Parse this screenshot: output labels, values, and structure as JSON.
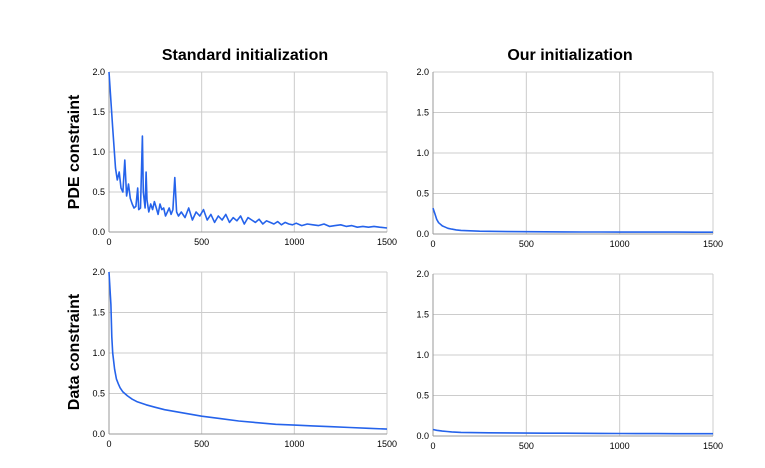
{
  "figure": {
    "col_titles": [
      "Standard initialization",
      "Our initialization"
    ],
    "row_titles": [
      "PDE constraint",
      "Data constraint"
    ]
  },
  "chart_data": [
    {
      "type": "line",
      "row": "PDE constraint",
      "column": "Standard initialization",
      "xlim": [
        0,
        1500
      ],
      "ylim": [
        0,
        2.0
      ],
      "xticks": [
        "0",
        "500",
        "1000",
        "1500"
      ],
      "yticks": [
        "0.0",
        "0.5",
        "1.0",
        "1.5",
        "2.0"
      ],
      "grid": true,
      "color": "#2563eb",
      "x": [
        0,
        20,
        35,
        45,
        55,
        65,
        75,
        85,
        95,
        105,
        115,
        125,
        135,
        145,
        155,
        160,
        170,
        180,
        185,
        195,
        200,
        205,
        215,
        225,
        235,
        245,
        255,
        265,
        275,
        285,
        295,
        305,
        315,
        325,
        335,
        345,
        355,
        365,
        375,
        390,
        410,
        430,
        450,
        470,
        490,
        510,
        530,
        550,
        570,
        590,
        610,
        630,
        650,
        670,
        690,
        710,
        730,
        750,
        770,
        790,
        810,
        830,
        850,
        870,
        890,
        910,
        930,
        950,
        970,
        990,
        1010,
        1040,
        1070,
        1100,
        1130,
        1160,
        1190,
        1220,
        1250,
        1280,
        1310,
        1340,
        1370,
        1400,
        1430,
        1460,
        1500
      ],
      "y": [
        2.0,
        1.3,
        0.8,
        0.65,
        0.75,
        0.55,
        0.5,
        0.9,
        0.45,
        0.6,
        0.42,
        0.35,
        0.3,
        0.32,
        0.55,
        0.28,
        0.3,
        1.2,
        0.5,
        0.3,
        0.75,
        0.4,
        0.25,
        0.35,
        0.28,
        0.38,
        0.3,
        0.22,
        0.35,
        0.28,
        0.3,
        0.2,
        0.25,
        0.3,
        0.22,
        0.28,
        0.68,
        0.25,
        0.2,
        0.25,
        0.18,
        0.3,
        0.15,
        0.25,
        0.2,
        0.28,
        0.15,
        0.22,
        0.12,
        0.2,
        0.15,
        0.22,
        0.12,
        0.18,
        0.14,
        0.2,
        0.1,
        0.18,
        0.15,
        0.12,
        0.16,
        0.1,
        0.14,
        0.12,
        0.1,
        0.13,
        0.09,
        0.12,
        0.1,
        0.09,
        0.11,
        0.08,
        0.1,
        0.09,
        0.08,
        0.1,
        0.07,
        0.08,
        0.09,
        0.07,
        0.08,
        0.06,
        0.07,
        0.06,
        0.07,
        0.06,
        0.05
      ]
    },
    {
      "type": "line",
      "row": "PDE constraint",
      "column": "Our initialization",
      "xlim": [
        0,
        1500
      ],
      "ylim": [
        0,
        2.0
      ],
      "xticks": [
        "0",
        "500",
        "1000",
        "1500"
      ],
      "yticks": [
        "0.0",
        "0.5",
        "1.0",
        "1.5",
        "2.0"
      ],
      "grid": true,
      "color": "#2563eb",
      "x": [
        0,
        10,
        20,
        30,
        40,
        50,
        60,
        80,
        100,
        125,
        150,
        200,
        250,
        300,
        400,
        500,
        600,
        700,
        800,
        900,
        1000,
        1100,
        1200,
        1300,
        1400,
        1500
      ],
      "y": [
        0.32,
        0.25,
        0.18,
        0.14,
        0.12,
        0.1,
        0.09,
        0.07,
        0.06,
        0.05,
        0.045,
        0.04,
        0.035,
        0.033,
        0.03,
        0.028,
        0.027,
        0.026,
        0.025,
        0.025,
        0.024,
        0.024,
        0.023,
        0.023,
        0.022,
        0.022
      ]
    },
    {
      "type": "line",
      "row": "Data constraint",
      "column": "Standard initialization",
      "xlim": [
        0,
        1500
      ],
      "ylim": [
        0,
        2.0
      ],
      "xticks": [
        "0",
        "500",
        "1000",
        "1500"
      ],
      "yticks": [
        "0.0",
        "0.5",
        "1.0",
        "1.5",
        "2.0"
      ],
      "grid": true,
      "color": "#2563eb",
      "x": [
        0,
        10,
        15,
        20,
        30,
        40,
        50,
        60,
        75,
        100,
        125,
        150,
        200,
        250,
        300,
        400,
        500,
        600,
        700,
        800,
        900,
        1000,
        1100,
        1200,
        1300,
        1400,
        1500
      ],
      "y": [
        2.0,
        1.6,
        1.2,
        1.0,
        0.8,
        0.68,
        0.62,
        0.57,
        0.52,
        0.47,
        0.43,
        0.4,
        0.36,
        0.33,
        0.3,
        0.26,
        0.22,
        0.19,
        0.16,
        0.14,
        0.12,
        0.11,
        0.1,
        0.09,
        0.08,
        0.07,
        0.06
      ]
    },
    {
      "type": "line",
      "row": "Data constraint",
      "column": "Our initialization",
      "xlim": [
        0,
        1500
      ],
      "ylim": [
        0,
        2.0
      ],
      "xticks": [
        "0",
        "500",
        "1000",
        "1500"
      ],
      "yticks": [
        "0.0",
        "0.5",
        "1.0",
        "1.5",
        "2.0"
      ],
      "grid": true,
      "color": "#2563eb",
      "x": [
        0,
        20,
        50,
        75,
        100,
        150,
        200,
        300,
        400,
        500,
        600,
        700,
        800,
        900,
        1000,
        1100,
        1200,
        1300,
        1400,
        1500
      ],
      "y": [
        0.08,
        0.07,
        0.06,
        0.055,
        0.05,
        0.045,
        0.042,
        0.04,
        0.038,
        0.036,
        0.035,
        0.034,
        0.033,
        0.032,
        0.031,
        0.03,
        0.03,
        0.029,
        0.029,
        0.028
      ]
    }
  ]
}
